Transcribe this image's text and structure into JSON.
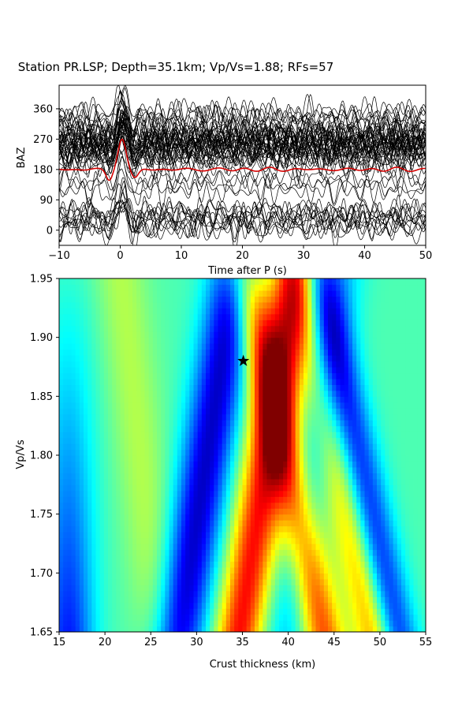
{
  "title": "Station PR.LSP; Depth=35.1km; Vp/Vs=1.88; RFs=57",
  "chart_data": [
    {
      "type": "line",
      "panel": "receiver-functions",
      "xlabel": "Time after P (s)",
      "ylabel": "BAZ",
      "xlim": [
        -10,
        50
      ],
      "ylim": [
        -45,
        430
      ],
      "xticks": [
        "−10",
        "0",
        "10",
        "20",
        "30",
        "40",
        "50"
      ],
      "yticks": [
        "0",
        "90",
        "180",
        "270",
        "360"
      ],
      "trace_count": 57,
      "baz_groups": [
        {
          "baz": 15,
          "count": 5
        },
        {
          "baz": 40,
          "count": 5
        },
        {
          "baz": 65,
          "count": 2
        },
        {
          "baz": 120,
          "count": 2
        },
        {
          "baz": 150,
          "count": 2
        },
        {
          "baz": 200,
          "count": 4
        },
        {
          "baz": 230,
          "count": 8
        },
        {
          "baz": 255,
          "count": 12
        },
        {
          "baz": 280,
          "count": 8
        },
        {
          "baz": 310,
          "count": 5
        },
        {
          "baz": 340,
          "count": 4
        }
      ],
      "trace_color": "#000000",
      "stack_color": "#d40000",
      "stack_baz": 180
    },
    {
      "type": "heatmap",
      "panel": "h-kappa-stack",
      "xlabel": "Crust thickness (km)",
      "ylabel": "Vp/Vs",
      "xlim": [
        15,
        55
      ],
      "ylim": [
        1.65,
        1.95
      ],
      "xticks": [
        "15",
        "20",
        "25",
        "30",
        "35",
        "40",
        "45",
        "50",
        "55"
      ],
      "yticks": [
        "1.65",
        "1.70",
        "1.75",
        "1.80",
        "1.85",
        "1.90",
        "1.95"
      ],
      "colormap": "jet",
      "best_fit": {
        "h": 35.1,
        "k": 1.88,
        "marker": "star"
      }
    }
  ]
}
